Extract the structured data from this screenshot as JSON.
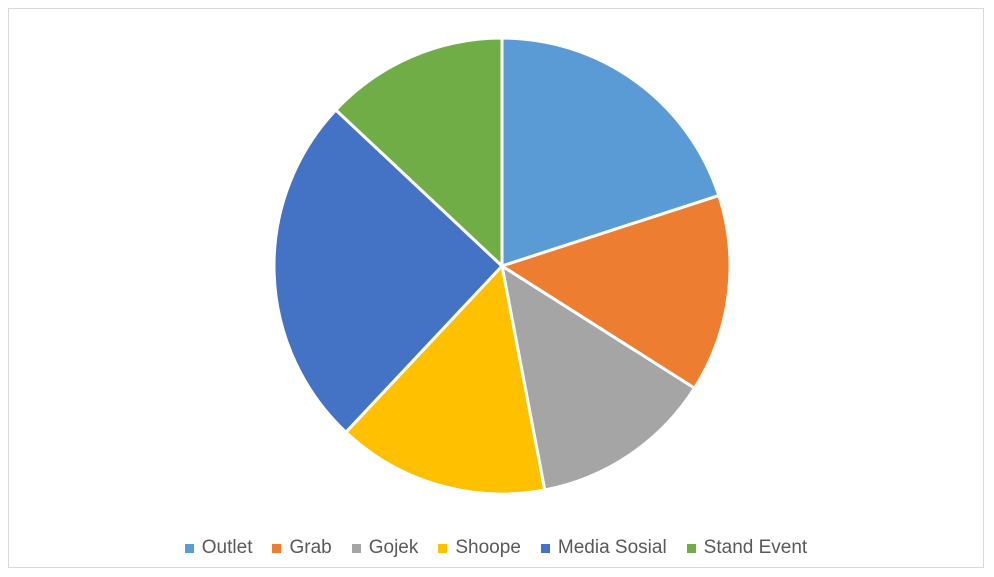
{
  "chart_data": {
    "type": "pie",
    "title": "",
    "legend_position": "bottom",
    "categories": [
      "Outlet",
      "Grab",
      "Gojek",
      "Shoope",
      "Media Sosial",
      "Stand Event"
    ],
    "values": [
      20,
      14,
      13,
      15,
      25,
      13
    ],
    "colors": [
      "#5B9BD5",
      "#ED7D31",
      "#A5A5A5",
      "#FFC000",
      "#4472C4",
      "#70AD47"
    ]
  }
}
